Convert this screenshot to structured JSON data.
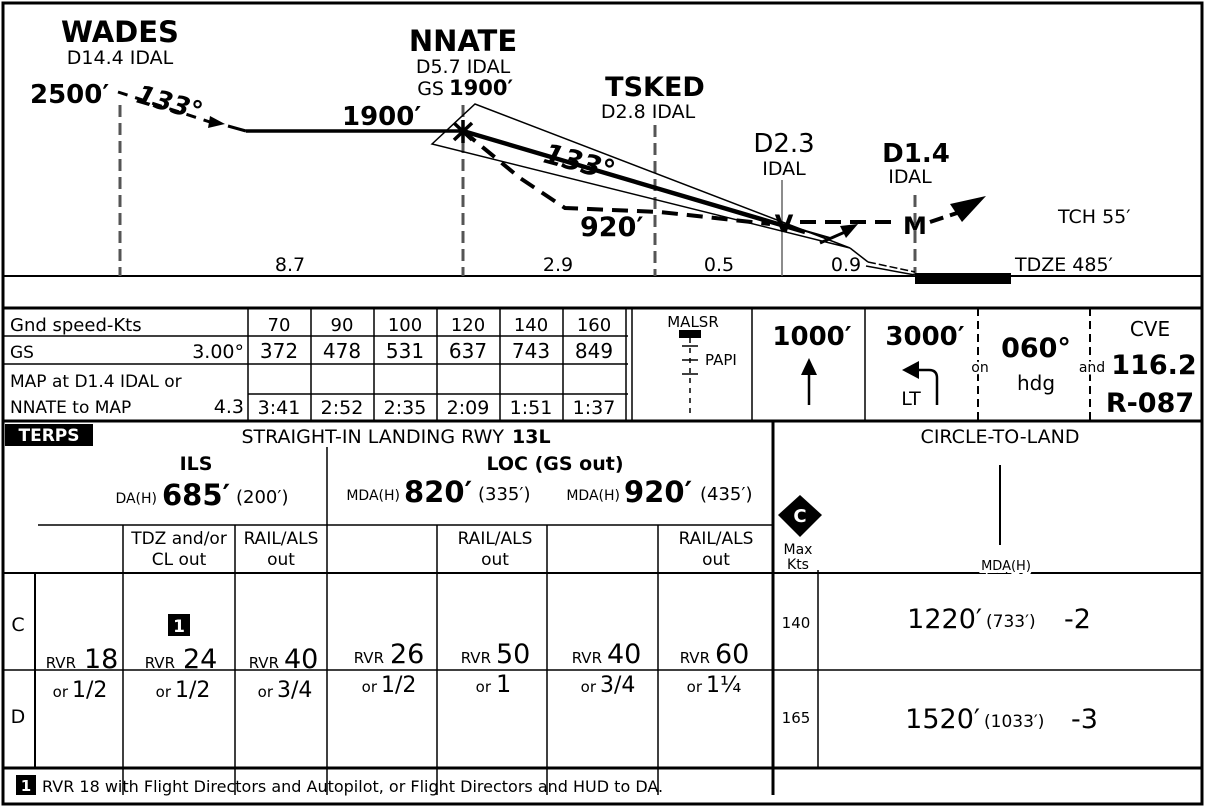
{
  "profile": {
    "fixes": {
      "wades": {
        "name": "WADES",
        "dist": "D14.4 IDAL"
      },
      "nnate": {
        "name": "NNATE",
        "dist": "D5.7 IDAL",
        "gs_prefix": "GS",
        "gs_alt": "1900′"
      },
      "tsked": {
        "name": "TSKED",
        "dist": "D2.8 IDAL"
      },
      "d23": {
        "name": "D2.3",
        "dist": "IDAL"
      },
      "d14": {
        "name": "D1.4",
        "dist": "IDAL"
      }
    },
    "alt_2500": "2500′",
    "course_1": "133°",
    "alt_1900": "1900′",
    "course_2": "133°",
    "alt_920": "920′",
    "vdp_symbol": "V",
    "map_symbol": "M",
    "tch": "TCH 55′",
    "tdze": "TDZE 485′",
    "segments": [
      "8.7",
      "2.9",
      "0.5",
      "0.9"
    ]
  },
  "timing_table": {
    "header_label": "Gnd speed-Kts",
    "speeds": [
      "70",
      "90",
      "100",
      "120",
      "140",
      "160"
    ],
    "gs_label": "GS",
    "gs_angle": "3.00°",
    "gs_values": [
      "372",
      "478",
      "531",
      "637",
      "743",
      "849"
    ],
    "map_label_1": "MAP at D1.4 IDAL or",
    "map_label_2": "NNATE to MAP",
    "map_dist": "4.3",
    "map_times": [
      "3:41",
      "2:52",
      "2:35",
      "2:09",
      "1:51",
      "1:37"
    ]
  },
  "missed_approach": {
    "lighting": "MALSR",
    "papi": "PAPI",
    "climb_alt": "1000′",
    "turn_alt": "3000′",
    "turn_dir": "LT",
    "on_label": "on",
    "hdg_value": "060°",
    "hdg_label": "hdg",
    "and_label": "and",
    "vor_id": "CVE",
    "vor_freq": "116.2",
    "radial": "R-087"
  },
  "minimums": {
    "terps_label": "TERPS",
    "title_prefix": "STRAIGHT-IN LANDING RWY",
    "title_rwy": "13L",
    "circle_title": "CIRCLE-TO-LAND",
    "ils": {
      "name": "ILS",
      "da_label": "DA(H)",
      "da_value": "685′",
      "da_height": "(200′)"
    },
    "loc": {
      "name": "LOC (GS out)",
      "mda1_label": "MDA(H)",
      "mda1_value": "820′",
      "mda1_height": "(335′)",
      "mda2_label": "MDA(H)",
      "mda2_value": "920′",
      "mda2_height": "(435′)"
    },
    "sub_tdz": [
      "TDZ and/or",
      "CL  out"
    ],
    "sub_rail": [
      "RAIL/ALS",
      "out"
    ],
    "cat_c_symbol": "C",
    "max_kts_label": [
      "Max",
      "Kts"
    ],
    "circle_mda_label": "MDA(H)",
    "categories": [
      "C",
      "D"
    ],
    "rvr_label": "RVR",
    "or_label": "or",
    "cells": [
      {
        "rvr": "18",
        "vis": "1/2"
      },
      {
        "rvr": "24",
        "vis": "1/2",
        "note": "1"
      },
      {
        "rvr": "40",
        "vis": "3/4"
      },
      {
        "rvr": "26",
        "vis": "1/2"
      },
      {
        "rvr": "50",
        "vis": "1"
      },
      {
        "rvr": "40",
        "vis": "3/4"
      },
      {
        "rvr": "60",
        "vis": "1¼"
      }
    ],
    "circle_rows": [
      {
        "kts": "140",
        "mda": "1220′",
        "height": "(733′)",
        "vis": "-2"
      },
      {
        "kts": "165",
        "mda": "1520′",
        "height": "(1033′)",
        "vis": "-3"
      }
    ]
  },
  "footnote": {
    "marker": "1",
    "text": "RVR 18 with Flight Directors and Autopilot, or Flight Directors and HUD to DA."
  }
}
